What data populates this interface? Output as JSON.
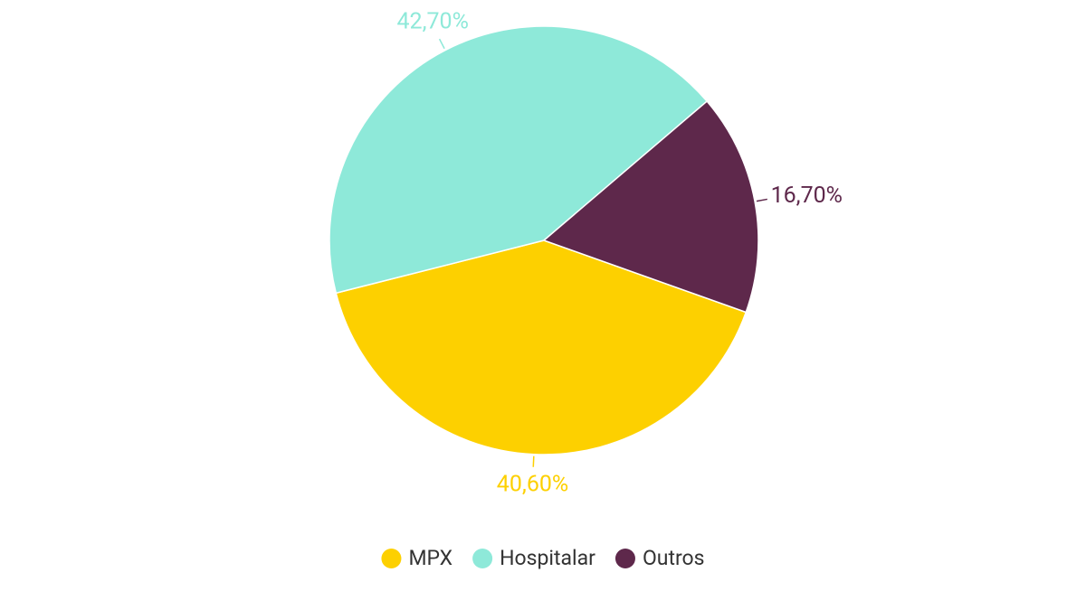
{
  "chart_data": {
    "type": "pie",
    "categories": [
      "MPX",
      "Hospitalar",
      "Outros"
    ],
    "values": [
      40.6,
      42.7,
      16.7
    ],
    "value_labels": [
      "40,60%",
      "42,70%",
      "16,70%"
    ],
    "colors": [
      "#fdd000",
      "#8ee9d9",
      "#5e284b"
    ],
    "legend": "bottom"
  }
}
